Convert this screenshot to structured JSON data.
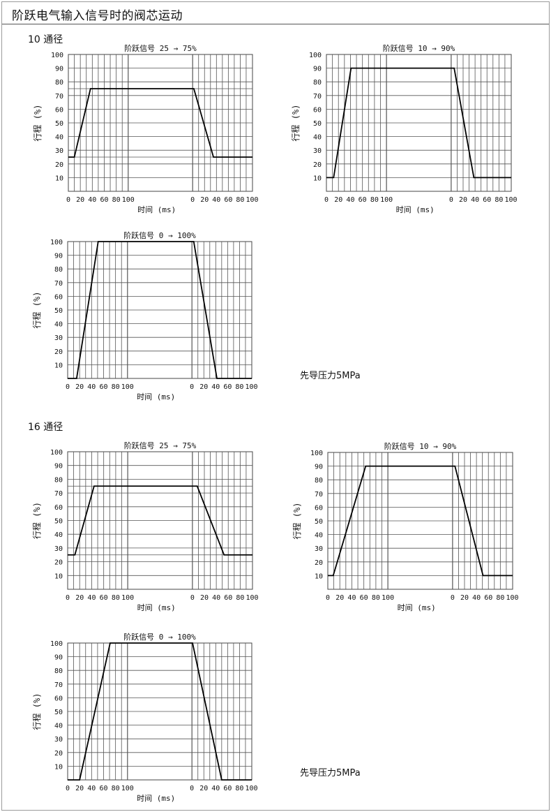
{
  "header": {
    "title": "阶跃电气输入信号时的阀芯运动"
  },
  "sections": [
    {
      "label": "10 通径",
      "note": "先导压力5MPa"
    },
    {
      "label": "16 通径",
      "note": "先导压力5MPa"
    }
  ],
  "chart_data": [
    {
      "type": "line",
      "section": "10 通径",
      "title": "阶跃信号 25 → 75%",
      "xlabel": "时间 (ms)",
      "ylabel": "行程 (%)",
      "ylim": [
        0,
        100
      ],
      "yticks": [
        "10",
        "20",
        "30",
        "40",
        "50",
        "60",
        "70",
        "80",
        "90",
        "100"
      ],
      "xticks": [
        "0",
        "20",
        "40",
        "60",
        "80",
        "100"
      ],
      "grid": true,
      "start": 25,
      "end": 75,
      "rise_ms": [
        10,
        37
      ],
      "fall_ms": [
        2,
        35
      ]
    },
    {
      "type": "line",
      "section": "10 通径",
      "title": "阶跃信号 10 → 90%",
      "xlabel": "时间 (ms)",
      "ylabel": "行程 (%)",
      "ylim": [
        0,
        100
      ],
      "yticks": [
        "10",
        "20",
        "30",
        "40",
        "50",
        "60",
        "70",
        "80",
        "90",
        "100"
      ],
      "xticks": [
        "0",
        "20",
        "40",
        "60",
        "80",
        "100"
      ],
      "grid": true,
      "start": 10,
      "end": 90,
      "rise_ms": [
        12,
        41
      ],
      "fall_ms": [
        5,
        38
      ]
    },
    {
      "type": "line",
      "section": "10 通径",
      "title": "阶跃信号 0 → 100%",
      "xlabel": "时间 (ms)",
      "ylabel": "行程 (%)",
      "ylim": [
        0,
        100
      ],
      "yticks": [
        "10",
        "20",
        "30",
        "40",
        "50",
        "60",
        "70",
        "80",
        "90",
        "100"
      ],
      "xticks": [
        "0",
        "20",
        "40",
        "60",
        "80",
        "100"
      ],
      "grid": true,
      "start": 0,
      "end": 100,
      "rise_ms": [
        15,
        51
      ],
      "fall_ms": [
        3,
        42
      ]
    },
    {
      "type": "line",
      "section": "16 通径",
      "title": "阶跃信号 25 → 75%",
      "xlabel": "时间 (ms)",
      "ylabel": "行程 (%)",
      "ylim": [
        0,
        100
      ],
      "yticks": [
        "10",
        "20",
        "30",
        "40",
        "50",
        "60",
        "70",
        "80",
        "90",
        "100"
      ],
      "xticks": [
        "0",
        "20",
        "40",
        "60",
        "80",
        "100"
      ],
      "grid": true,
      "start": 25,
      "end": 75,
      "rise_ms": [
        12,
        44
      ],
      "fall_ms": [
        8,
        53
      ]
    },
    {
      "type": "line",
      "section": "16 通径",
      "title": "阶跃信号 10 → 90%",
      "xlabel": "时间 (ms)",
      "ylabel": "行程 (%)",
      "ylim": [
        0,
        100
      ],
      "yticks": [
        "10",
        "20",
        "30",
        "40",
        "50",
        "60",
        "70",
        "80",
        "90",
        "100"
      ],
      "xticks": [
        "0",
        "20",
        "40",
        "60",
        "80",
        "100"
      ],
      "grid": true,
      "start": 10,
      "end": 90,
      "rise_ms": [
        9,
        63
      ],
      "fall_ms": [
        4,
        51
      ]
    },
    {
      "type": "line",
      "section": "16 通径",
      "title": "阶跃信号 0 → 100%",
      "xlabel": "时间 (ms)",
      "ylabel": "行程 (%)",
      "ylim": [
        0,
        100
      ],
      "yticks": [
        "10",
        "20",
        "30",
        "40",
        "50",
        "60",
        "70",
        "80",
        "90",
        "100"
      ],
      "xticks": [
        "0",
        "20",
        "40",
        "60",
        "80",
        "100"
      ],
      "grid": true,
      "start": 0,
      "end": 100,
      "rise_ms": [
        20,
        71
      ],
      "fall_ms": [
        1,
        50
      ]
    }
  ]
}
